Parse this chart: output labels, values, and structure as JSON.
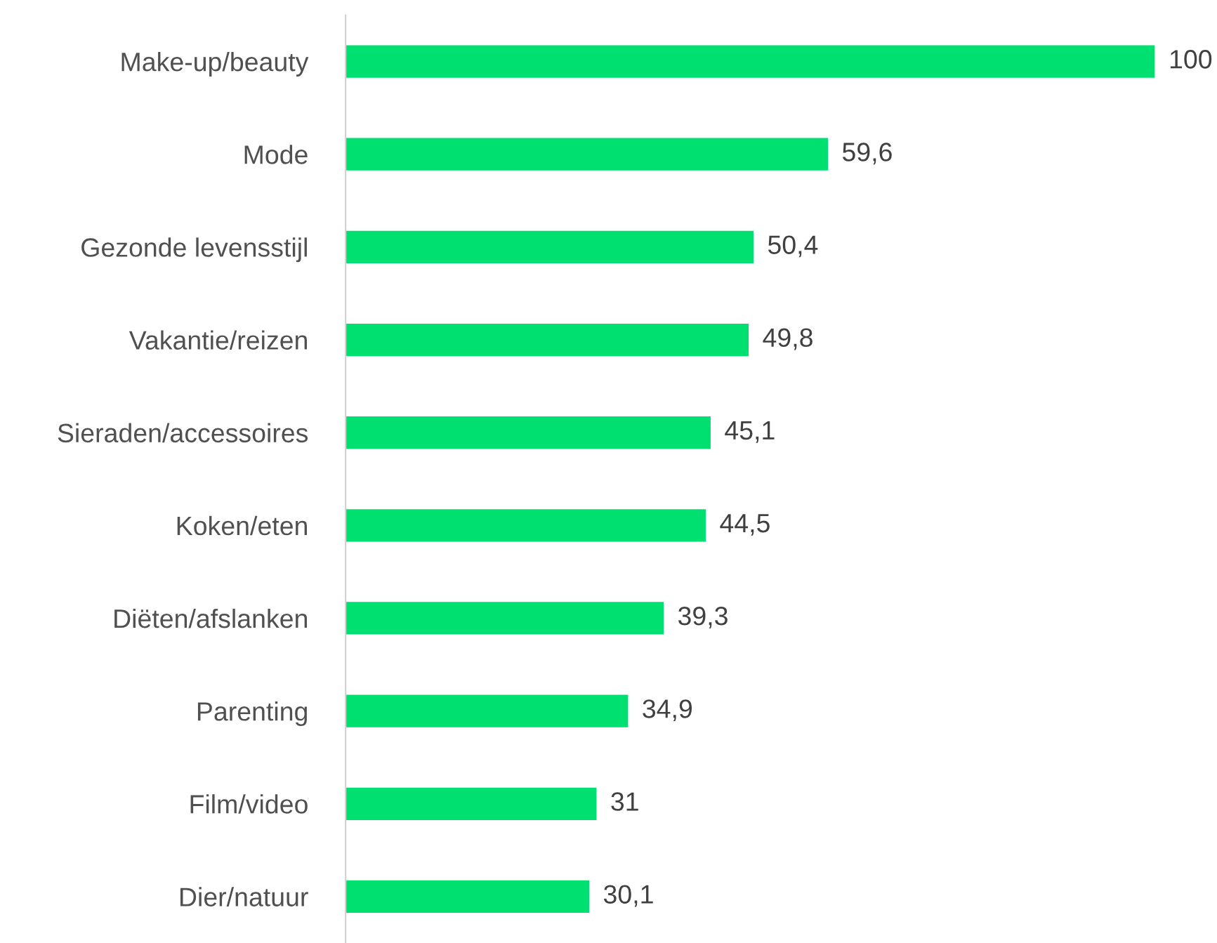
{
  "chart_data": {
    "type": "bar",
    "orientation": "horizontal",
    "categories": [
      "Make-up/beauty",
      "Mode",
      "Gezonde levensstijl",
      "Vakantie/reizen",
      "Sieraden/accessoires",
      "Koken/eten",
      "Diëten/afslanken",
      "Parenting",
      "Film/video",
      "Dier/natuur"
    ],
    "values": [
      100,
      59.6,
      50.4,
      49.8,
      45.1,
      44.5,
      39.3,
      34.9,
      31,
      30.1
    ],
    "value_labels": [
      "100",
      "59,6",
      "50,4",
      "49,8",
      "45,1",
      "44,5",
      "39,3",
      "34,9",
      "31",
      "30,1"
    ],
    "color": "#00e070",
    "tick_labels": "y",
    "grid": false,
    "legend": false
  }
}
